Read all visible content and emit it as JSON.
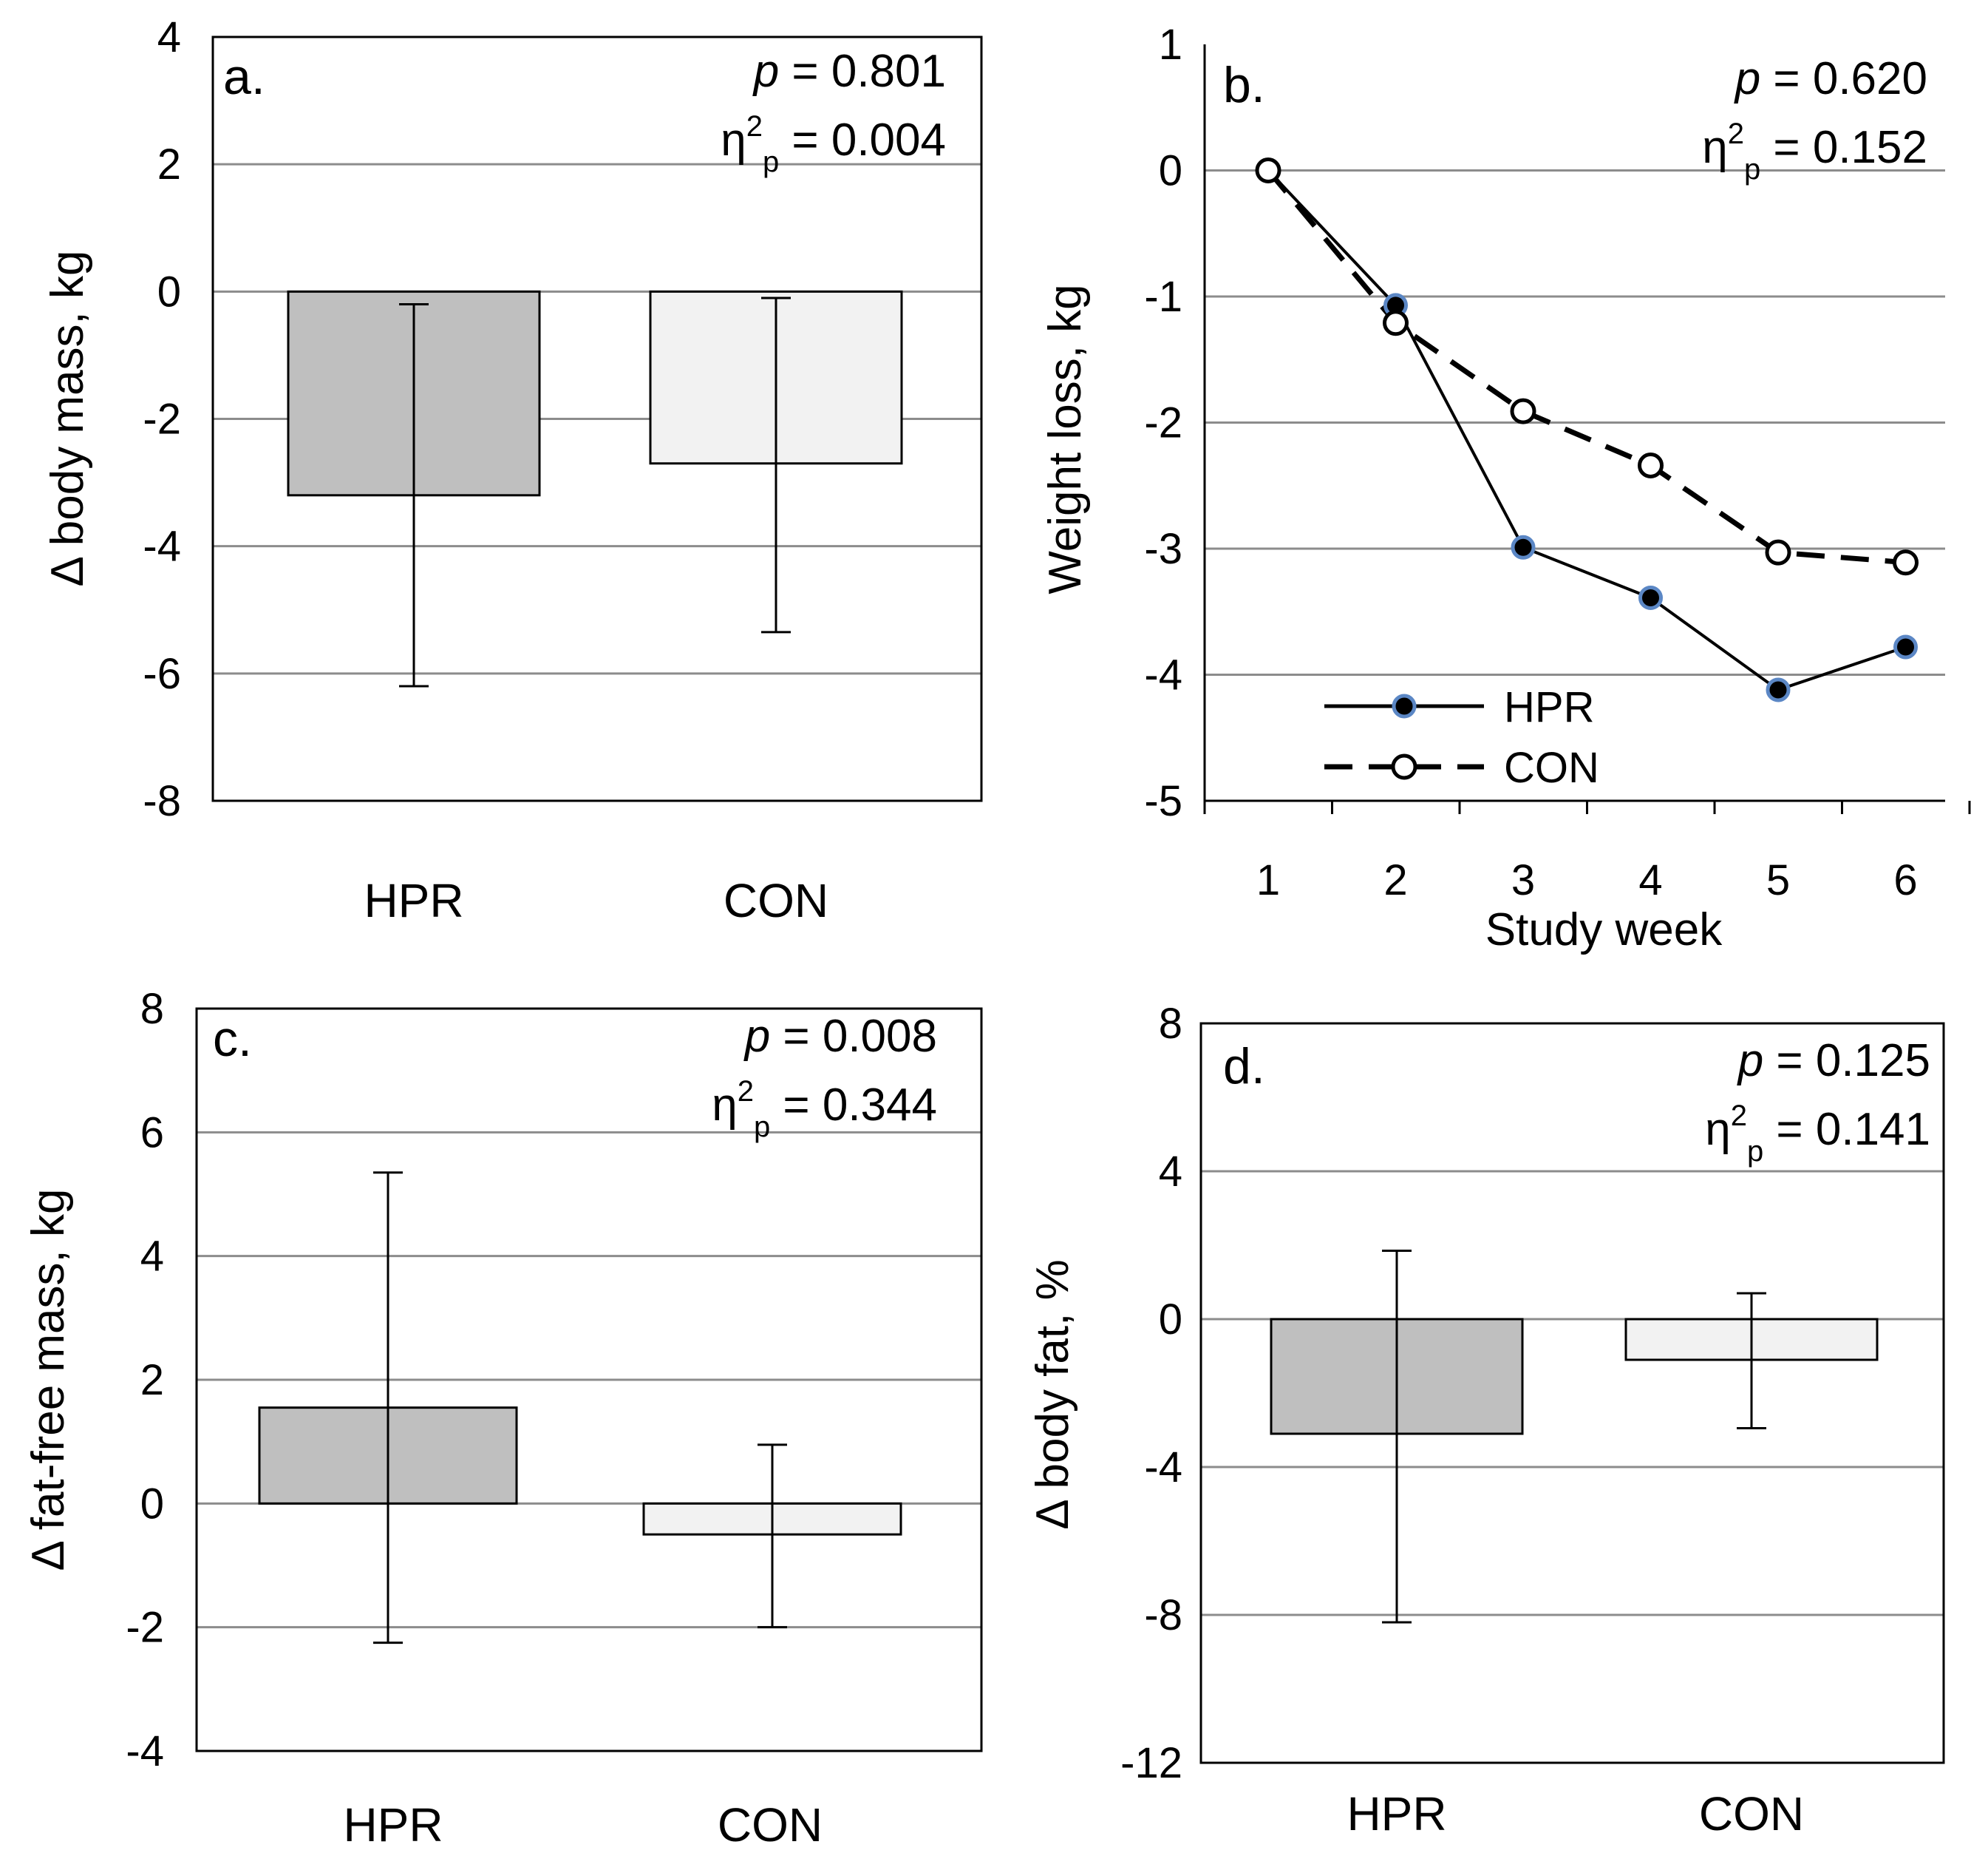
{
  "chart_data": [
    {
      "id": "a",
      "type": "bar",
      "panel_label": "a.",
      "categories": [
        "HPR",
        "CON"
      ],
      "values": [
        -3.2,
        -2.7
      ],
      "error_low": [
        -6.2,
        -5.35
      ],
      "error_high": [
        -0.2,
        -0.1
      ],
      "bar_colors": [
        "#bfbfbf",
        "#f2f2f2"
      ],
      "ylabel": "Δ body mass, kg",
      "xlabel": "",
      "ylim": [
        -8,
        4
      ],
      "yticks": [
        4,
        2,
        0,
        -2,
        -4,
        -6,
        -8
      ],
      "ytick_labels": [
        "4",
        "2",
        "0",
        "-2",
        "-4",
        "-6",
        "-8"
      ],
      "grid": true,
      "stats": {
        "p_label": "p",
        "p_text": " = 0.801",
        "eta_text": "η",
        "sup": "2",
        "sub": "p",
        "eta_value": " = 0.004"
      }
    },
    {
      "id": "b",
      "type": "line",
      "panel_label": "b.",
      "x": [
        1,
        2,
        3,
        4,
        5,
        6
      ],
      "xtick_labels": [
        "1",
        "2",
        "3",
        "4",
        "5",
        "6"
      ],
      "series": [
        {
          "name": "HPR",
          "values": [
            0,
            -1.07,
            -2.99,
            -3.39,
            -4.12,
            -3.78
          ],
          "line_style": "solid",
          "marker_fill": "#000000",
          "marker_ring": "#5b87c5"
        },
        {
          "name": "CON",
          "values": [
            0,
            -1.21,
            -1.91,
            -2.34,
            -3.03,
            -3.11
          ],
          "line_style": "dashed",
          "marker_fill": "#ffffff",
          "marker_ring": "#000000"
        }
      ],
      "ylabel": "Weight loss, kg",
      "xlabel": "Study week",
      "ylim": [
        -5,
        1
      ],
      "yticks": [
        1,
        0,
        -1,
        -2,
        -3,
        -4,
        -5
      ],
      "ytick_labels": [
        "1",
        "0",
        "-1",
        "-2",
        "-3",
        "-4",
        "-5"
      ],
      "grid": true,
      "legend_position": "bottom-left",
      "stats": {
        "p_label": "p",
        "p_text": " = 0.620",
        "eta_text": "η",
        "sup": "2",
        "sub": "p",
        "eta_value": " = 0.152"
      }
    },
    {
      "id": "c",
      "type": "bar",
      "panel_label": "c.",
      "categories": [
        "HPR",
        "CON"
      ],
      "values": [
        1.55,
        -0.5
      ],
      "error_low": [
        -2.25,
        -2.0
      ],
      "error_high": [
        5.35,
        0.95
      ],
      "bar_colors": [
        "#bfbfbf",
        "#f2f2f2"
      ],
      "ylabel": "Δ fat-free mass, kg",
      "xlabel": "",
      "ylim": [
        -4,
        8
      ],
      "yticks": [
        8,
        6,
        4,
        2,
        0,
        -2,
        -4
      ],
      "ytick_labels": [
        "8",
        "6",
        "4",
        "2",
        "0",
        "-2",
        "-4"
      ],
      "grid": true,
      "stats": {
        "p_label": "p",
        "p_text": " = 0.008",
        "eta_text": "η",
        "sup": "2",
        "sub": "p",
        "eta_value": " = 0.344"
      }
    },
    {
      "id": "d",
      "type": "bar",
      "panel_label": "d.",
      "categories": [
        "HPR",
        "CON"
      ],
      "values": [
        -3.1,
        -1.1
      ],
      "error_low": [
        -8.2,
        -2.95
      ],
      "error_high": [
        1.85,
        0.7
      ],
      "bar_colors": [
        "#bfbfbf",
        "#f2f2f2"
      ],
      "ylabel": "Δ body fat, %",
      "xlabel": "",
      "ylim": [
        -12,
        8
      ],
      "yticks": [
        8,
        4,
        0,
        -4,
        -8,
        -12
      ],
      "ytick_labels": [
        "8",
        "4",
        "0",
        "-4",
        "-8",
        "-12"
      ],
      "grid": true,
      "stats": {
        "p_label": "p",
        "p_text": " = 0.125",
        "eta_text": "η",
        "sup": "2",
        "sub": "p",
        "eta_value": " = 0.141"
      }
    }
  ]
}
